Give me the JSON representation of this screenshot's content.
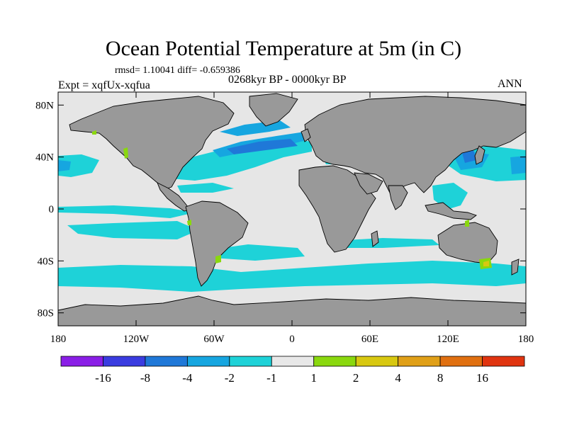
{
  "title": "Ocean Potential Temperature at 5m (in C)",
  "stats": "rmsd= 1.10041 diff= -0.659386",
  "experiment": "Expt = xqfUx-xqfua",
  "period": "0268kyr BP - 0000kyr BP",
  "season": "ANN",
  "axes": {
    "lat_ticks": [
      {
        "value": 80,
        "label": "80N"
      },
      {
        "value": 40,
        "label": "40N"
      },
      {
        "value": 0,
        "label": "0"
      },
      {
        "value": -40,
        "label": "40S"
      },
      {
        "value": -80,
        "label": "80S"
      }
    ],
    "lon_ticks": [
      {
        "value": -180,
        "label": "180"
      },
      {
        "value": -120,
        "label": "120W"
      },
      {
        "value": -60,
        "label": "60W"
      },
      {
        "value": 0,
        "label": "0"
      },
      {
        "value": 60,
        "label": "60E"
      },
      {
        "value": 120,
        "label": "120E"
      },
      {
        "value": 180,
        "label": "180"
      }
    ],
    "lon_range": [
      -180,
      180
    ],
    "lat_range": [
      -90,
      90
    ]
  },
  "colorbar": {
    "labels": [
      "-16",
      "-8",
      "-4",
      "-2",
      "-1",
      "1",
      "2",
      "4",
      "8",
      "16"
    ],
    "colors": [
      "#8a1ee6",
      "#3a3ce0",
      "#1f78d8",
      "#16a6e0",
      "#1ed2d8",
      "#e8e8e8",
      "#8ad80e",
      "#d8c810",
      "#e0a018",
      "#e07010",
      "#e03410"
    ]
  },
  "colors": {
    "land": "#999999",
    "neutral": "#e6e6e6",
    "cool1": "#1ed2d8",
    "cool2": "#16a6e0",
    "cool3": "#1f78d8",
    "warm1": "#8ad80e",
    "warm2": "#d8c810"
  }
}
